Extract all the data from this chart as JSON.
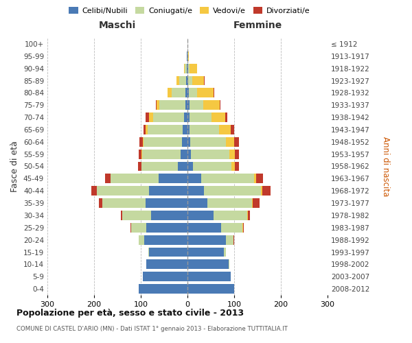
{
  "age_groups": [
    "0-4",
    "5-9",
    "10-14",
    "15-19",
    "20-24",
    "25-29",
    "30-34",
    "35-39",
    "40-44",
    "45-49",
    "50-54",
    "55-59",
    "60-64",
    "65-69",
    "70-74",
    "75-79",
    "80-84",
    "85-89",
    "90-94",
    "95-99",
    "100+"
  ],
  "birth_years": [
    "2008-2012",
    "2003-2007",
    "1998-2002",
    "1993-1997",
    "1988-1992",
    "1983-1987",
    "1978-1982",
    "1973-1977",
    "1968-1972",
    "1963-1967",
    "1958-1962",
    "1953-1957",
    "1948-1952",
    "1943-1947",
    "1938-1942",
    "1933-1937",
    "1928-1932",
    "1923-1927",
    "1918-1922",
    "1913-1917",
    "≤ 1912"
  ],
  "males": {
    "celibi": [
      105,
      95,
      88,
      82,
      92,
      88,
      78,
      90,
      82,
      62,
      20,
      15,
      12,
      10,
      8,
      5,
      4,
      3,
      2,
      1,
      0
    ],
    "coniugati": [
      0,
      0,
      0,
      2,
      12,
      32,
      62,
      92,
      112,
      102,
      78,
      82,
      82,
      76,
      66,
      56,
      30,
      15,
      4,
      1,
      0
    ],
    "vedovi": [
      0,
      0,
      0,
      0,
      0,
      0,
      0,
      0,
      0,
      0,
      0,
      1,
      2,
      3,
      8,
      5,
      8,
      5,
      2,
      0,
      0
    ],
    "divorziati": [
      0,
      0,
      0,
      0,
      0,
      2,
      2,
      8,
      12,
      12,
      8,
      6,
      7,
      5,
      8,
      2,
      1,
      0,
      0,
      0,
      0
    ]
  },
  "females": {
    "nubili": [
      100,
      92,
      88,
      78,
      82,
      72,
      56,
      42,
      36,
      30,
      12,
      8,
      6,
      5,
      5,
      4,
      3,
      2,
      2,
      0,
      0
    ],
    "coniugate": [
      0,
      0,
      2,
      5,
      16,
      46,
      72,
      96,
      122,
      112,
      82,
      82,
      76,
      62,
      46,
      30,
      18,
      8,
      3,
      1,
      0
    ],
    "vedove": [
      0,
      0,
      0,
      0,
      0,
      1,
      1,
      2,
      2,
      5,
      8,
      12,
      18,
      25,
      30,
      35,
      35,
      25,
      15,
      2,
      0
    ],
    "divorziate": [
      0,
      0,
      0,
      0,
      2,
      2,
      5,
      15,
      18,
      15,
      8,
      8,
      10,
      8,
      5,
      2,
      2,
      2,
      0,
      0,
      0
    ]
  },
  "colors": {
    "celibi": "#4a7ab5",
    "coniugati": "#c5d9a0",
    "vedovi": "#f5c842",
    "divorziati": "#c0392b"
  },
  "xlim": 300,
  "title": "Popolazione per età, sesso e stato civile - 2013",
  "subtitle": "COMUNE DI CASTEL D'ARIO (MN) - Dati ISTAT 1° gennaio 2013 - Elaborazione TUTTITALIA.IT",
  "ylabel_left": "Fasce di età",
  "ylabel_right": "Anni di nascita",
  "xlabel_maschi": "Maschi",
  "xlabel_femmine": "Femmine",
  "background_color": "#ffffff",
  "grid_color": "#bbbbbb"
}
